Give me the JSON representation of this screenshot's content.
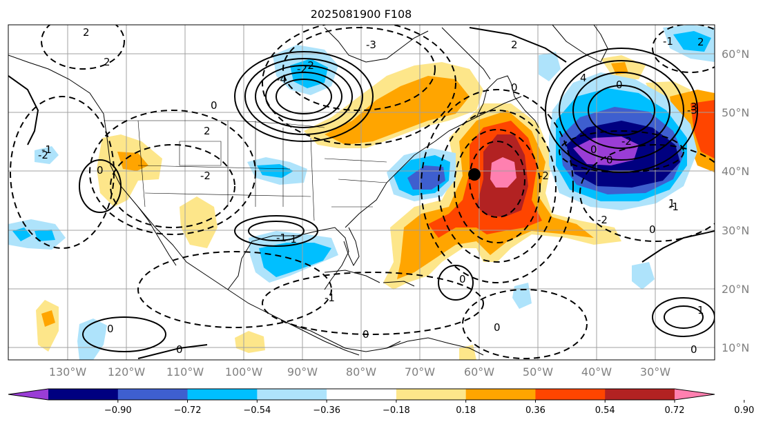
{
  "title": "2025081900 F108",
  "lat_labels": [
    "60°N",
    "50°N",
    "40°N",
    "30°N",
    "20°N",
    "10°N"
  ],
  "lon_labels": [
    "130°W",
    "120°W",
    "110°W",
    "100°W",
    "90°W",
    "80°W",
    "70°W",
    "60°W",
    "50°W",
    "40°W",
    "30°W"
  ],
  "colorbar": {
    "ticks": [
      "−0.90",
      "−0.72",
      "−0.54",
      "−0.36",
      "−0.18",
      "0.18",
      "0.36",
      "0.54",
      "0.72",
      "0.90"
    ],
    "colors": [
      "#9a3dd6",
      "#000080",
      "#3e5fcf",
      "#00bfff",
      "#aee3fb",
      "#ffffff",
      "#fde68a",
      "#ffa500",
      "#ff4500",
      "#b22222",
      "#ff80b0"
    ]
  },
  "contour_labels": [
    "2",
    "2",
    "-2",
    "0",
    "-1",
    "-1",
    "0",
    "-2",
    "2",
    "-2",
    "-3",
    "-4",
    "2",
    "4",
    "0",
    "-2",
    "0",
    "-3",
    "-2",
    "-2",
    "-1",
    "0",
    "-1",
    "0",
    "0",
    "-1",
    "1",
    "0",
    "0",
    "0",
    "0",
    "1",
    "2",
    "-1",
    "-2",
    "0",
    "0",
    "3"
  ],
  "marker": "storm-position-dot"
}
